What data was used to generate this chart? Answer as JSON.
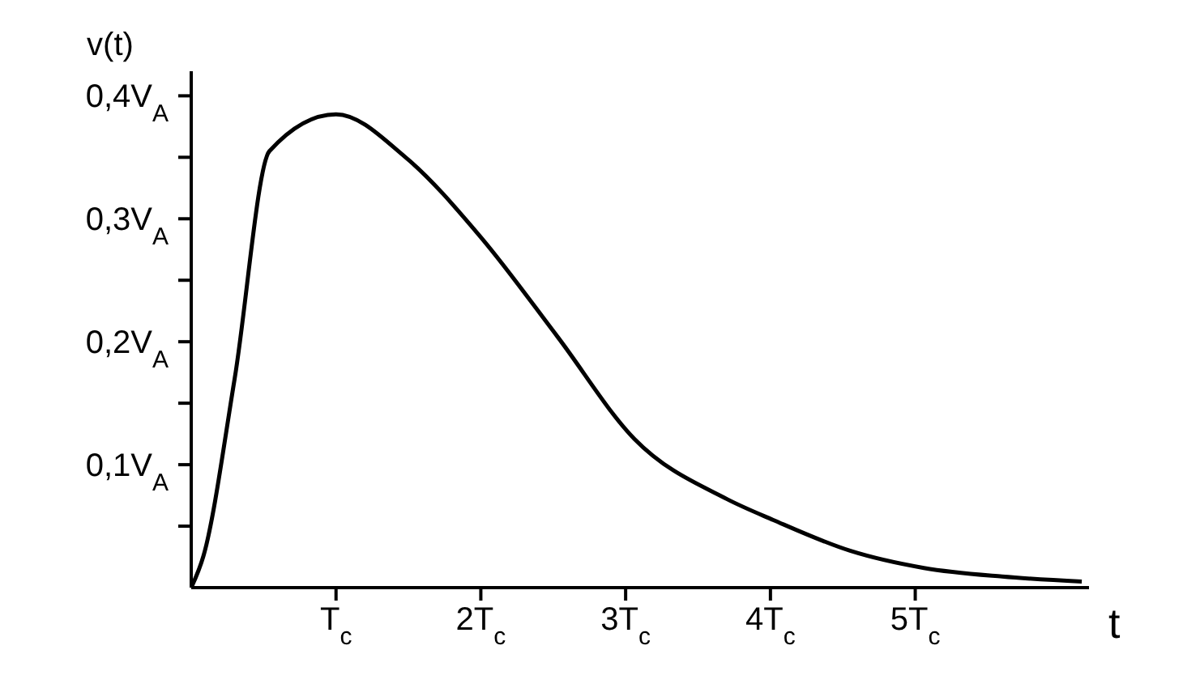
{
  "chart_data": {
    "type": "line",
    "xlabel": "t",
    "ylabel": "v(t)",
    "x": [
      0,
      0.085,
      0.3,
      0.54,
      1,
      1.48,
      2,
      2.53,
      3.06,
      3.7,
      4.02,
      4.55,
      5.06,
      5.6,
      6.15
    ],
    "series": [
      {
        "color": "#000000",
        "values": [
          0,
          0.026,
          0.17,
          0.355,
          0.385,
          0.35,
          0.285,
          0.204,
          0.121,
          0.072,
          0.055,
          0.03,
          0.016,
          0.009,
          0.005
        ]
      }
    ],
    "xlim": [
      0,
      6.2
    ],
    "ylim": [
      0,
      0.42
    ],
    "xticks": [
      {
        "value": 1,
        "label": "T$_{c}$"
      },
      {
        "value": 2,
        "label": "2T$_{c}$"
      },
      {
        "value": 3,
        "label": "3T$_{c}$"
      },
      {
        "value": 4,
        "label": "4T$_{c}$"
      },
      {
        "value": 5,
        "label": "5T$_{c}$"
      }
    ],
    "yticks": [
      {
        "value": 0.05,
        "label": null
      },
      {
        "value": 0.1,
        "label": "0,1V$_{A}$"
      },
      {
        "value": 0.15,
        "label": null
      },
      {
        "value": 0.2,
        "label": "0,2V$_{A}$"
      },
      {
        "value": 0.25,
        "label": null
      },
      {
        "value": 0.3,
        "label": "0,3V$_{A}$"
      },
      {
        "value": 0.35,
        "label": null
      },
      {
        "value": 0.4,
        "label": "0,4V$_{A}$"
      }
    ],
    "grid": false,
    "legend": false,
    "marker": "none",
    "line_style": "solid"
  }
}
